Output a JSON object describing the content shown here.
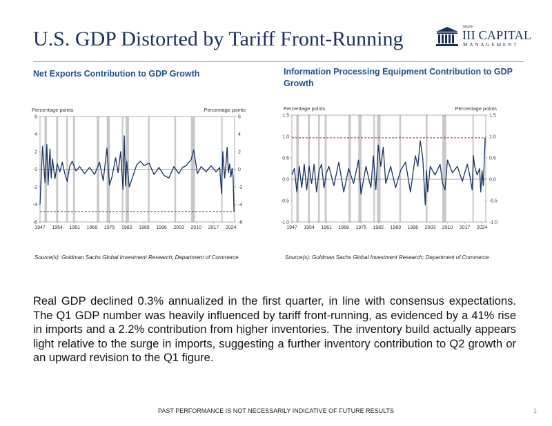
{
  "page": {
    "title": "U.S. GDP Distorted by Tariff Front-Running",
    "logo": {
      "small": "Seguin",
      "name": "III CAPITAL",
      "sub": "MANAGEMENT"
    },
    "body": "Real GDP declined 0.3% annualized in the first quarter, in line with consensus expectations. The Q1 GDP number was heavily influenced by tariff front-running, as evidenced by a 41% rise in imports and a 2.2% contribution from higher inventories. The inventory build actually appears light relative to the surge in imports, suggesting a further inventory contribution to Q2 growth or an upward revision to the Q1 figure.",
    "footer": "PAST PERFORMANCE IS NOT NECESSARILY INDICATIVE OF FUTURE RESULTS",
    "page_number": "1",
    "colors": {
      "title": "#1b2f5c",
      "chart_title": "#1f4e8c",
      "series": "#13305f",
      "recession": "#c8c8c8",
      "reference": "#cc1f1f"
    }
  },
  "chart_data": [
    {
      "type": "line",
      "title": "Net Exports Contribution to GDP Growth",
      "ylabel_left": "Percentage points",
      "ylabel_right": "Percentage points",
      "source": "Source(s): Goldman Sachs Global Investment Research; Department of Commerce",
      "ylim": [
        -6,
        6
      ],
      "yticks": [
        6,
        4,
        2,
        0,
        -2,
        -4,
        -6
      ],
      "xlim": [
        1947,
        2025.5
      ],
      "xticks": [
        "1947",
        "1954",
        "1961",
        "1968",
        "1975",
        "1982",
        "1989",
        "1996",
        "2003",
        "2010",
        "2017",
        "2024"
      ],
      "grid": false,
      "reference_line": {
        "y": -4.8,
        "style": "dashed"
      },
      "zero_line": true,
      "recessions": [
        [
          1948.8,
          1949.8
        ],
        [
          1953.5,
          1954.3
        ],
        [
          1957.6,
          1958.3
        ],
        [
          1960.3,
          1961.1
        ],
        [
          1969.9,
          1970.9
        ],
        [
          1973.9,
          1975.2
        ],
        [
          1980.0,
          1980.6
        ],
        [
          1981.5,
          1982.9
        ],
        [
          1990.5,
          1991.2
        ],
        [
          2001.2,
          2001.9
        ],
        [
          2007.9,
          2009.5
        ],
        [
          2020.1,
          2020.5
        ]
      ],
      "series": [
        {
          "x": [
            1947.0,
            1948.0,
            1949.0,
            1949.75,
            1950.25,
            1951.0,
            1951.5,
            1952.0,
            1953.0,
            1954.0,
            1955.0,
            1956.0,
            1957.0,
            1958.0,
            1959.0,
            1960.0,
            1961.5,
            1963.0,
            1965.0,
            1967.0,
            1969.0,
            1971.0,
            1972.5,
            1974.0,
            1975.0,
            1976.0,
            1977.5,
            1978.5,
            1979.5,
            1980.5,
            1981.0,
            1981.5,
            1982.0,
            1983.0,
            1984.0,
            1986.0,
            1987.5,
            1989.0,
            1991.0,
            1993.0,
            1995.0,
            1997.0,
            1999.0,
            2001.0,
            2003.0,
            2004.5,
            2006.0,
            2008.0,
            2009.0,
            2010.5,
            2012.0,
            2014.0,
            2016.0,
            2018.0,
            2019.5,
            2020.25,
            2020.75,
            2021.5,
            2022.0,
            2022.5,
            2023.0,
            2023.5,
            2024.0,
            2024.5,
            2024.9,
            2025.25
          ],
          "y": [
            -4.0,
            2.6,
            -1.5,
            2.8,
            -1.8,
            2.3,
            -1.0,
            1.2,
            -1.1,
            0.6,
            -0.3,
            0.8,
            -0.5,
            -1.4,
            0.4,
            0.9,
            -0.2,
            0.3,
            -0.5,
            0.2,
            -0.6,
            0.8,
            -1.3,
            2.4,
            -1.8,
            -0.9,
            1.3,
            -0.4,
            2.0,
            -2.3,
            3.8,
            -1.9,
            0.9,
            -2.0,
            -1.2,
            0.5,
            0.9,
            0.4,
            0.7,
            -0.6,
            0.2,
            -0.7,
            -1.0,
            0.3,
            -0.5,
            0.2,
            0.4,
            1.1,
            2.2,
            -0.5,
            0.3,
            -0.3,
            0.4,
            -0.3,
            0.2,
            -2.8,
            2.0,
            -1.0,
            0.5,
            2.5,
            -0.4,
            0.6,
            -0.9,
            0.1,
            -0.8,
            -4.8
          ]
        }
      ]
    },
    {
      "type": "line",
      "title": "Information Processing Equipment Contribution to GDP Growth",
      "ylabel_left": "Percentage points",
      "ylabel_right": "Percentage points",
      "source": "Source(s): Goldman Sachs Global Investment Research; Department of Commerce",
      "ylim": [
        -1.0,
        1.5
      ],
      "yticks": [
        "1.5",
        "1.0",
        "0.5",
        "0.0",
        "-0.5",
        "-1.0"
      ],
      "xlim": [
        1947,
        2025.5
      ],
      "xticks": [
        "1947",
        "1954",
        "1961",
        "1968",
        "1975",
        "1982",
        "1989",
        "1996",
        "2003",
        "2010",
        "2017",
        "2024"
      ],
      "grid": false,
      "reference_line": {
        "y": 0.97,
        "style": "dashed"
      },
      "zero_line": true,
      "recessions": [
        [
          1948.8,
          1949.8
        ],
        [
          1953.5,
          1954.3
        ],
        [
          1957.6,
          1958.3
        ],
        [
          1960.3,
          1961.1
        ],
        [
          1969.9,
          1970.9
        ],
        [
          1973.9,
          1975.2
        ],
        [
          1980.0,
          1980.6
        ],
        [
          1981.5,
          1982.9
        ],
        [
          1990.5,
          1991.2
        ],
        [
          2001.2,
          2001.9
        ],
        [
          2007.9,
          2009.5
        ],
        [
          2020.1,
          2020.5
        ]
      ],
      "series": [
        {
          "x": [
            1947.0,
            1948.0,
            1949.0,
            1950.0,
            1951.0,
            1952.0,
            1953.0,
            1954.0,
            1955.0,
            1956.0,
            1957.0,
            1958.0,
            1959.0,
            1960.0,
            1961.0,
            1962.0,
            1964.0,
            1966.0,
            1968.0,
            1970.0,
            1972.0,
            1974.0,
            1975.0,
            1977.0,
            1979.0,
            1980.0,
            1981.0,
            1982.0,
            1983.0,
            1984.0,
            1985.0,
            1987.0,
            1989.0,
            1991.0,
            1993.0,
            1995.0,
            1997.0,
            1998.0,
            1999.0,
            2000.0,
            2001.0,
            2001.5,
            2002.0,
            2003.0,
            2005.0,
            2007.0,
            2008.0,
            2009.0,
            2010.0,
            2012.0,
            2014.0,
            2016.0,
            2018.0,
            2019.0,
            2020.0,
            2020.5,
            2021.0,
            2022.0,
            2023.0,
            2023.5,
            2024.0,
            2024.5,
            2025.25
          ],
          "y": [
            0.1,
            0.25,
            -0.3,
            0.3,
            -0.2,
            0.35,
            -0.25,
            0.3,
            -0.1,
            0.35,
            -0.3,
            0.2,
            0.35,
            -0.2,
            0.15,
            0.3,
            -0.15,
            0.4,
            -0.3,
            0.25,
            -0.1,
            0.45,
            -0.35,
            0.3,
            -0.2,
            0.55,
            -0.25,
            0.8,
            0.3,
            0.75,
            -0.1,
            0.3,
            -0.2,
            0.2,
            0.4,
            -0.3,
            0.55,
            0.3,
            0.9,
            0.5,
            -0.6,
            0.2,
            -0.3,
            0.3,
            0.1,
            0.35,
            -0.1,
            -0.25,
            0.45,
            0.15,
            0.3,
            -0.05,
            0.35,
            0.1,
            -0.25,
            0.55,
            0.3,
            0.1,
            0.25,
            -0.3,
            0.2,
            -0.15,
            0.97
          ]
        }
      ]
    }
  ]
}
